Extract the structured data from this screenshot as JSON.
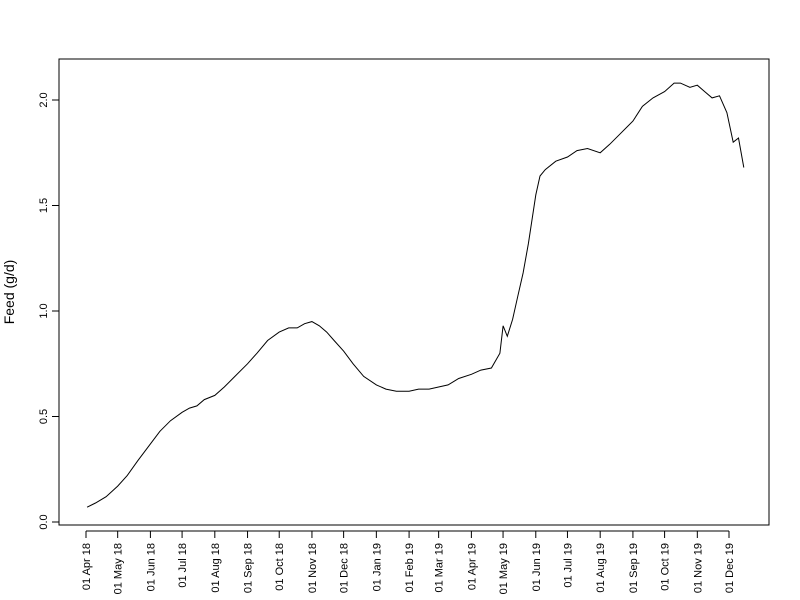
{
  "chart_data": {
    "type": "line",
    "title": "",
    "xlabel": "",
    "ylabel": "Feed (g/d)",
    "ylim": [
      0,
      2.2
    ],
    "y_ticks": [
      0.0,
      0.5,
      1.0,
      1.5,
      2.0
    ],
    "y_tick_labels": [
      "0.0",
      "0.5",
      "1.0",
      "1.5",
      "2.0"
    ],
    "x_ticks": [
      "2018-04-01",
      "2018-05-01",
      "2018-06-01",
      "2018-07-01",
      "2018-08-01",
      "2018-09-01",
      "2018-10-01",
      "2018-11-01",
      "2018-12-01",
      "2019-01-01",
      "2019-02-01",
      "2019-03-01",
      "2019-04-01",
      "2019-05-01",
      "2019-06-01",
      "2019-07-01",
      "2019-08-01",
      "2019-09-01",
      "2019-10-01",
      "2019-11-01",
      "2019-12-01"
    ],
    "x_tick_labels": [
      "01 Apr 18",
      "01 May 18",
      "01 Jun 18",
      "01 Jul 18",
      "01 Aug 18",
      "01 Sep 18",
      "01 Oct 18",
      "01 Nov 18",
      "01 Dec 18",
      "01 Jan 19",
      "01 Feb 19",
      "01 Mar 19",
      "01 Apr 19",
      "01 May 19",
      "01 Jun 19",
      "01 Jul 19",
      "01 Aug 19",
      "01 Sep 19",
      "01 Oct 19",
      "01 Nov 19",
      "01 Dec 19"
    ],
    "grid": false,
    "legend": "none",
    "line_color": "#000000",
    "series": [
      {
        "x": [
          "2018-04-02",
          "2018-04-10",
          "2018-04-20",
          "2018-05-01",
          "2018-05-10",
          "2018-05-20",
          "2018-06-01",
          "2018-06-10",
          "2018-06-20",
          "2018-07-01",
          "2018-07-08",
          "2018-07-15",
          "2018-07-22",
          "2018-08-01",
          "2018-08-10",
          "2018-08-20",
          "2018-09-01",
          "2018-09-10",
          "2018-09-20",
          "2018-10-01",
          "2018-10-10",
          "2018-10-18",
          "2018-10-25",
          "2018-11-01",
          "2018-11-08",
          "2018-11-15",
          "2018-11-22",
          "2018-12-01",
          "2018-12-10",
          "2018-12-20",
          "2019-01-01",
          "2019-01-10",
          "2019-01-20",
          "2019-02-01",
          "2019-02-10",
          "2019-02-20",
          "2019-03-01",
          "2019-03-10",
          "2019-03-20",
          "2019-04-01",
          "2019-04-10",
          "2019-04-20",
          "2019-04-28",
          "2019-05-01",
          "2019-05-05",
          "2019-05-10",
          "2019-05-15",
          "2019-05-20",
          "2019-05-25",
          "2019-06-01",
          "2019-06-05",
          "2019-06-10",
          "2019-06-20",
          "2019-07-01",
          "2019-07-10",
          "2019-07-20",
          "2019-08-01",
          "2019-08-10",
          "2019-08-20",
          "2019-09-01",
          "2019-09-10",
          "2019-09-20",
          "2019-10-01",
          "2019-10-10",
          "2019-10-16",
          "2019-10-25",
          "2019-11-01",
          "2019-11-08",
          "2019-11-15",
          "2019-11-22",
          "2019-11-29",
          "2019-12-05",
          "2019-12-10",
          "2019-12-15"
        ],
        "y": [
          0.07,
          0.09,
          0.12,
          0.17,
          0.22,
          0.29,
          0.37,
          0.43,
          0.48,
          0.52,
          0.54,
          0.55,
          0.58,
          0.6,
          0.64,
          0.69,
          0.75,
          0.8,
          0.86,
          0.9,
          0.92,
          0.92,
          0.94,
          0.95,
          0.93,
          0.9,
          0.86,
          0.81,
          0.75,
          0.69,
          0.65,
          0.63,
          0.62,
          0.62,
          0.63,
          0.63,
          0.64,
          0.65,
          0.68,
          0.7,
          0.72,
          0.73,
          0.8,
          0.93,
          0.88,
          0.96,
          1.07,
          1.18,
          1.32,
          1.55,
          1.64,
          1.67,
          1.71,
          1.73,
          1.76,
          1.77,
          1.75,
          1.79,
          1.84,
          1.9,
          1.97,
          2.01,
          2.04,
          2.08,
          2.08,
          2.06,
          2.07,
          2.04,
          2.01,
          2.02,
          1.94,
          1.8,
          1.82,
          1.68
        ]
      }
    ]
  }
}
